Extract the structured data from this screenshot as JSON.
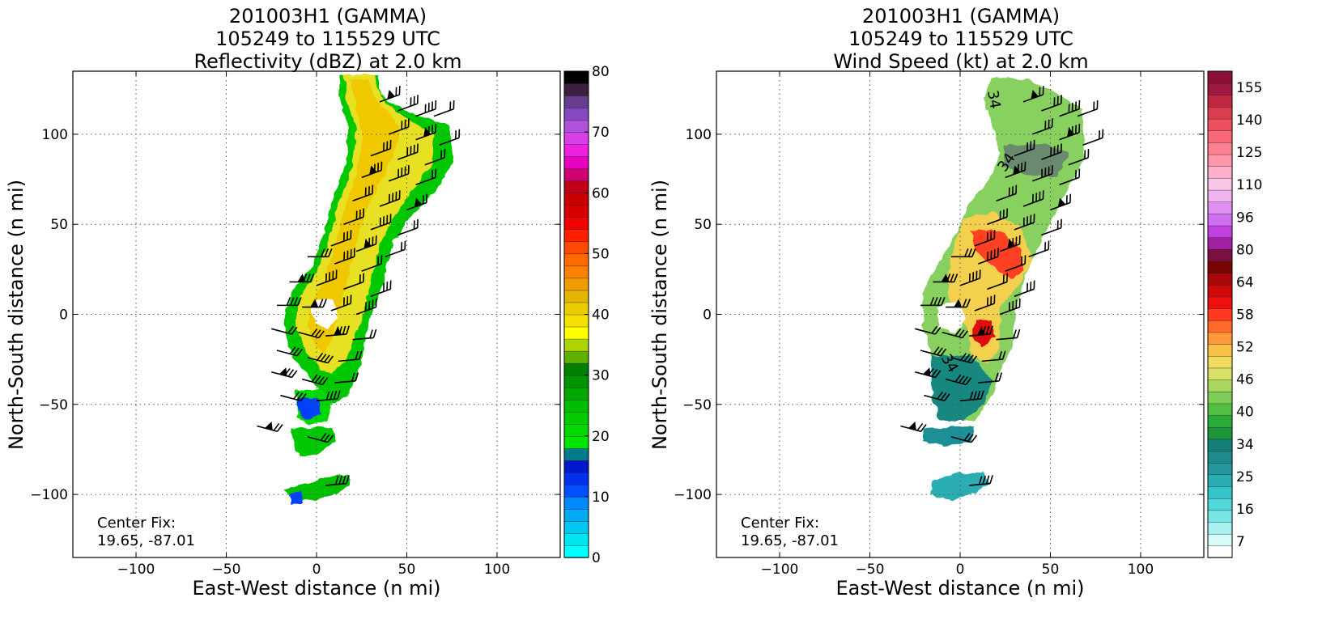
{
  "chart_data": [
    {
      "type": "heatmap",
      "title": [
        "201003H1 (GAMMA)",
        "105249 to 115529 UTC",
        "Reflectivity (dBZ) at 2.0 km"
      ],
      "xlabel": "East-West distance (n mi)",
      "ylabel": "North-South distance (n mi)",
      "xlim": [
        -135,
        135
      ],
      "ylim": [
        -135,
        135
      ],
      "xticks": [
        -100,
        -50,
        0,
        50,
        100
      ],
      "yticks": [
        -100,
        -50,
        0,
        50,
        100
      ],
      "grid": true,
      "annotation": [
        "Center Fix:",
        "19.65, -87.01"
      ],
      "field": "reflectivity",
      "colorbar": {
        "min": 0,
        "max": 80,
        "ticks": [
          0,
          10,
          20,
          30,
          40,
          50,
          60,
          70,
          80
        ],
        "colors": [
          "#00ffff",
          "#00e6f0",
          "#00c8f0",
          "#00aaf5",
          "#0088ff",
          "#0050ff",
          "#0030ee",
          "#0018cc",
          "#007b8a",
          "#00e600",
          "#00d800",
          "#00cc00",
          "#00bc00",
          "#00a800",
          "#009400",
          "#008000",
          "#5fb000",
          "#b0d400",
          "#ffff00",
          "#f5e000",
          "#ebcc00",
          "#e6b400",
          "#f09c00",
          "#fa8200",
          "#ff6a00",
          "#ff4800",
          "#ff2000",
          "#f00000",
          "#d80000",
          "#c80000",
          "#c00018",
          "#d00070",
          "#e800c0",
          "#f020e0",
          "#d840e8",
          "#b050dc",
          "#8848c0",
          "#683c90",
          "#3c2040",
          "#000000"
        ]
      }
    },
    {
      "type": "heatmap",
      "title": [
        "201003H1 (GAMMA)",
        "105249 to 115529 UTC",
        "Wind Speed (kt) at 2.0 km"
      ],
      "xlabel": "East-West distance (n mi)",
      "ylabel": "North-South distance (n mi)",
      "xlim": [
        -135,
        135
      ],
      "ylim": [
        -135,
        135
      ],
      "xticks": [
        -100,
        -50,
        0,
        50,
        100
      ],
      "yticks": [
        -100,
        -50,
        0,
        50,
        100
      ],
      "grid": true,
      "annotation": [
        "Center Fix:",
        "19.65, -87.01"
      ],
      "field": "wind_speed",
      "contour_labels": [
        "34",
        "34",
        "34"
      ],
      "colorbar": {
        "ticks": [
          "7",
          "16",
          "25",
          "34",
          "40",
          "46",
          "52",
          "58",
          "64",
          "80",
          "96",
          "110",
          "125",
          "140",
          "155"
        ],
        "colors": [
          "#ffffff",
          "#d8fbfb",
          "#a8f2f2",
          "#78e6e6",
          "#50d8d8",
          "#34c4c8",
          "#2aaeb4",
          "#25989e",
          "#1f8a8e",
          "#158078",
          "#1c9638",
          "#2caa38",
          "#54be44",
          "#80cc58",
          "#a8d860",
          "#d8e068",
          "#f2dc60",
          "#fac048",
          "#ff9838",
          "#ff6a2a",
          "#ff3a1e",
          "#f01010",
          "#d00808",
          "#a80808",
          "#780404",
          "#7a1040",
          "#a020a0",
          "#c040e0",
          "#d070f0",
          "#e090f0",
          "#f0b4f0",
          "#f8c8e8",
          "#ffb0cc",
          "#ff98a8",
          "#ff8090",
          "#f86878",
          "#ee5060",
          "#dc3c50",
          "#c02840",
          "#a01840",
          "#8a1038"
        ]
      }
    }
  ]
}
